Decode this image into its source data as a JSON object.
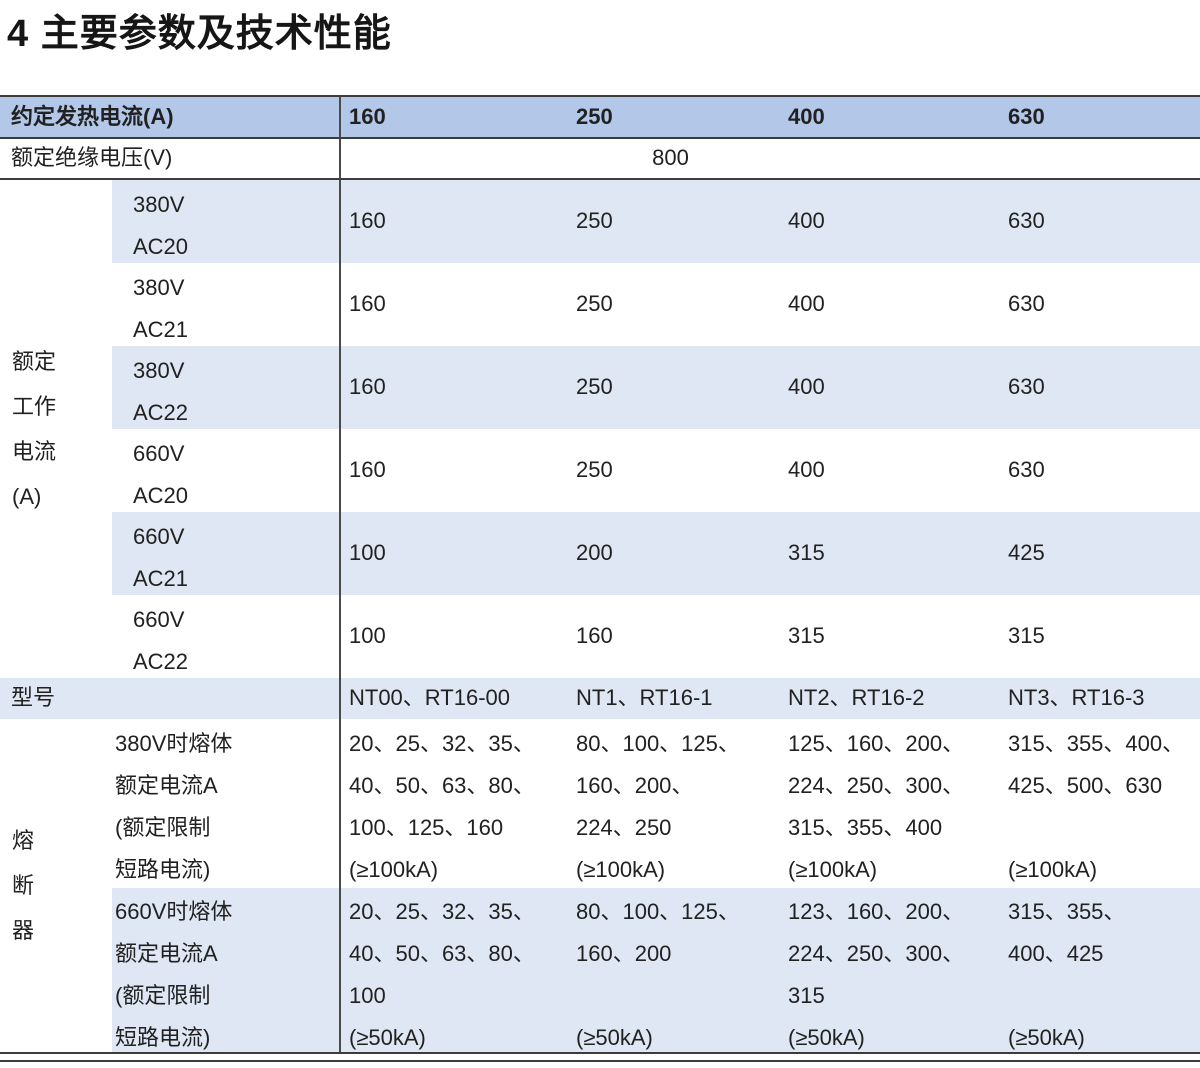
{
  "title": "4 主要参数及技术性能",
  "colors": {
    "header_bg": "#b3c8e8",
    "shaded_row_bg": "#dfe7f4",
    "rule": "#3c3c3c",
    "divider": "#4a4a4a",
    "text": "#212121"
  },
  "table": {
    "header": {
      "label": "约定发热电流(A)",
      "values": [
        "160",
        "250",
        "400",
        "630"
      ]
    },
    "insulation": {
      "label": "额定绝缘电压(V)",
      "value": "800"
    },
    "working_current": {
      "group_label_lines": [
        "额定",
        "工作",
        "电流",
        "(A)"
      ],
      "rows": [
        {
          "label_lines": [
            "380V",
            "AC20"
          ],
          "values": [
            "160",
            "250",
            "400",
            "630"
          ]
        },
        {
          "label_lines": [
            "380V",
            "AC21"
          ],
          "values": [
            "160",
            "250",
            "400",
            "630"
          ]
        },
        {
          "label_lines": [
            "380V",
            "AC22"
          ],
          "values": [
            "160",
            "250",
            "400",
            "630"
          ]
        },
        {
          "label_lines": [
            "660V",
            "AC20"
          ],
          "values": [
            "160",
            "250",
            "400",
            "630"
          ]
        },
        {
          "label_lines": [
            "660V",
            "AC21"
          ],
          "values": [
            "100",
            "200",
            "315",
            "425"
          ]
        },
        {
          "label_lines": [
            "660V",
            "AC22"
          ],
          "values": [
            "100",
            "160",
            "315",
            "315"
          ]
        }
      ]
    },
    "model": {
      "label": "型号",
      "values": [
        "NT00、RT16-00",
        "NT1、RT16-1",
        "NT2、RT16-2",
        "NT3、RT16-3"
      ]
    },
    "fuse": {
      "group_label_chars": [
        "熔",
        "断",
        "器"
      ],
      "rows": [
        {
          "label_lines": [
            "380V时熔体",
            "额定电流A",
            "(额定限制",
            "短路电流)"
          ],
          "cols": [
            [
              "20、25、32、35、",
              "40、50、63、80、",
              "100、125、160",
              "(≥100kA)"
            ],
            [
              "80、100、125、",
              "160、200、",
              "224、250",
              "(≥100kA)"
            ],
            [
              "125、160、200、",
              "224、250、300、",
              "315、355、400",
              "(≥100kA)"
            ],
            [
              "315、355、400、",
              "425、500、630",
              "",
              "(≥100kA)"
            ]
          ]
        },
        {
          "label_lines": [
            "660V时熔体",
            "额定电流A",
            "(额定限制",
            "短路电流)"
          ],
          "cols": [
            [
              "20、25、32、35、",
              "40、50、63、80、",
              "100",
              "(≥50kA)"
            ],
            [
              "80、100、125、",
              "160、200",
              "",
              "(≥50kA)"
            ],
            [
              "123、160、200、",
              "224、250、300、",
              "315",
              "(≥50kA)"
            ],
            [
              "315、355、",
              "400、425",
              "",
              "(≥50kA)"
            ]
          ]
        }
      ]
    }
  }
}
